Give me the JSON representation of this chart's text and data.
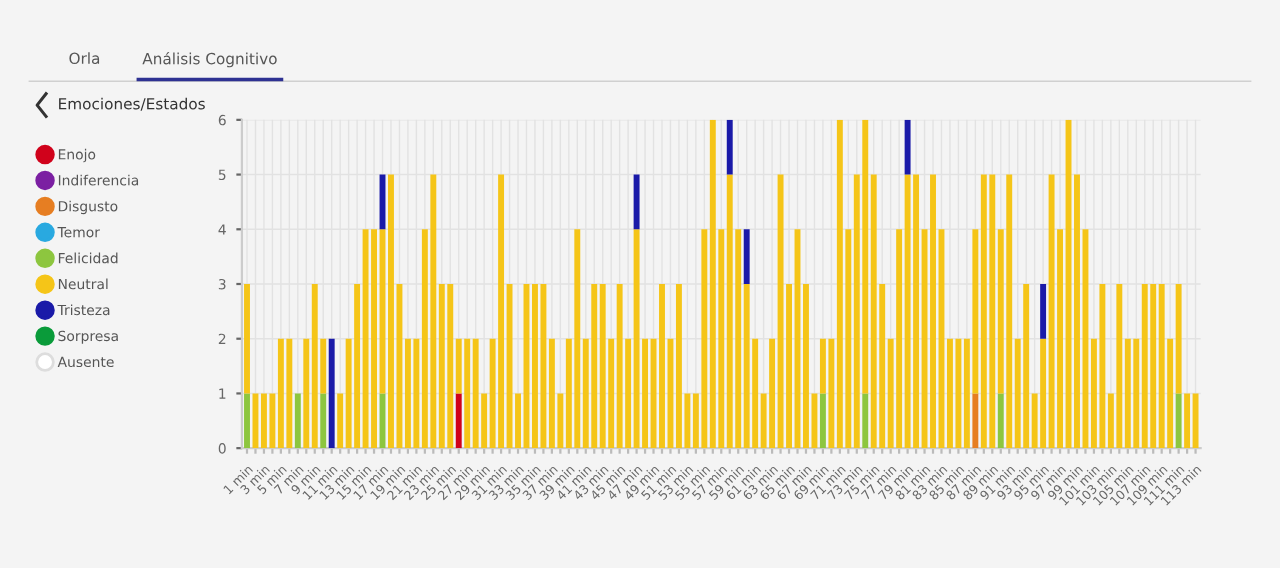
{
  "chart_data": {
    "type": "bar",
    "stacked": true,
    "legend": "left",
    "legend_title": "Emociones/Estados",
    "grid": true,
    "annotations": [
      "Orla",
      "Análisis Cognitivo"
    ],
    "ylim": [
      0,
      6
    ],
    "yticks": [
      0,
      1,
      2,
      3,
      4,
      5,
      6
    ],
    "categories": [
      "1 min",
      null,
      "3 min",
      null,
      "5 min",
      null,
      "7 min",
      null,
      "9 min",
      null,
      "11 min",
      null,
      "13 min",
      null,
      "15 min",
      null,
      "17 min",
      null,
      "19 min",
      null,
      "21 min",
      null,
      "23 min",
      null,
      "25 min",
      null,
      "27 min",
      null,
      "29 min",
      null,
      "31 min",
      null,
      "33 min",
      null,
      "35 min",
      null,
      "37 min",
      null,
      "39 min",
      null,
      "41 min",
      null,
      "43 min",
      null,
      "45 min",
      null,
      "47 min",
      null,
      "49 min",
      null,
      "51 min",
      null,
      "53 min",
      null,
      "55 min",
      null,
      "57 min",
      null,
      "59 min",
      null,
      "61 min",
      null,
      "63 min",
      null,
      "65 min",
      null,
      "67 min",
      null,
      "69 min",
      null,
      "71 min",
      null,
      "73 min",
      null,
      "75 min",
      null,
      "77 min",
      null,
      "79 min",
      null,
      "81 min",
      null,
      "83 min",
      null,
      "85 min",
      null,
      "87 min",
      null,
      "89 min",
      null,
      "91 min",
      null,
      "93 min",
      null,
      "95 min",
      null,
      "97 min",
      null,
      "99 min",
      null,
      "101 min",
      null,
      "103 min",
      null,
      "105 min",
      null,
      "107 min",
      null,
      "109 min",
      null,
      "111 min",
      null,
      "113 min"
    ],
    "series": [
      {
        "name": "Enojo",
        "color": "#d0021b",
        "values": [
          null,
          null,
          null,
          null,
          null,
          null,
          null,
          null,
          null,
          null,
          null,
          null,
          null,
          null,
          null,
          null,
          null,
          null,
          null,
          null,
          null,
          null,
          null,
          null,
          null,
          1,
          null,
          null,
          null,
          null,
          null,
          null,
          null,
          null,
          null,
          null,
          null,
          null,
          null,
          null,
          null,
          null,
          null,
          null,
          null,
          null,
          null,
          null,
          null,
          null,
          null,
          null,
          null,
          null,
          null,
          null,
          null,
          null,
          null,
          null,
          null,
          null,
          null,
          null,
          null,
          null,
          null,
          null,
          null,
          null,
          null,
          null,
          null,
          null,
          null,
          null,
          null,
          null,
          null,
          null,
          null,
          null,
          null,
          null,
          null,
          null,
          null,
          null,
          null,
          null,
          null,
          null,
          null,
          null,
          null,
          null,
          null,
          null,
          null,
          null,
          null,
          null,
          null,
          null,
          null,
          null,
          null,
          null,
          null,
          null,
          null,
          null,
          null
        ]
      },
      {
        "name": "Indiferencia",
        "color": "#7b1fa2",
        "values": [
          null,
          null,
          null,
          null,
          null,
          null,
          null,
          null,
          null,
          null,
          null,
          null,
          null,
          null,
          null,
          null,
          null,
          null,
          null,
          null,
          null,
          null,
          null,
          null,
          null,
          null,
          null,
          null,
          null,
          null,
          null,
          null,
          null,
          null,
          null,
          null,
          null,
          null,
          null,
          null,
          null,
          null,
          null,
          null,
          null,
          null,
          null,
          null,
          null,
          null,
          null,
          null,
          null,
          null,
          null,
          null,
          null,
          null,
          null,
          null,
          null,
          null,
          null,
          null,
          null,
          null,
          null,
          null,
          null,
          null,
          null,
          null,
          null,
          null,
          null,
          null,
          null,
          null,
          null,
          null,
          null,
          null,
          null,
          null,
          null,
          null,
          null,
          null,
          null,
          null,
          null,
          null,
          null,
          null,
          null,
          null,
          null,
          null,
          null,
          null,
          null,
          null,
          null,
          null,
          null,
          null,
          null,
          null,
          null,
          null,
          null,
          null,
          null
        ]
      },
      {
        "name": "Disgusto",
        "color": "#e67e22",
        "values": [
          null,
          null,
          null,
          null,
          null,
          null,
          null,
          null,
          null,
          null,
          null,
          null,
          null,
          null,
          null,
          null,
          null,
          null,
          null,
          null,
          null,
          null,
          null,
          null,
          null,
          null,
          null,
          null,
          null,
          null,
          null,
          null,
          null,
          null,
          null,
          null,
          null,
          null,
          null,
          null,
          null,
          null,
          null,
          null,
          null,
          null,
          null,
          null,
          null,
          null,
          null,
          null,
          null,
          null,
          null,
          null,
          null,
          null,
          null,
          null,
          null,
          null,
          null,
          null,
          null,
          null,
          null,
          null,
          null,
          null,
          null,
          null,
          null,
          null,
          null,
          null,
          null,
          null,
          null,
          null,
          null,
          null,
          null,
          null,
          null,
          null,
          1,
          null,
          null,
          null,
          null,
          null,
          null,
          null,
          null,
          null,
          null,
          null,
          null,
          null,
          null,
          null,
          null,
          null,
          null,
          null,
          null,
          null,
          null,
          null,
          null,
          null,
          null
        ]
      },
      {
        "name": "Temor",
        "color": "#29a9e0",
        "values": [
          null,
          null,
          null,
          null,
          null,
          null,
          null,
          null,
          null,
          null,
          null,
          null,
          null,
          null,
          null,
          null,
          null,
          null,
          null,
          null,
          null,
          null,
          null,
          null,
          null,
          null,
          null,
          null,
          null,
          null,
          null,
          null,
          null,
          null,
          null,
          null,
          null,
          null,
          null,
          null,
          null,
          null,
          null,
          null,
          null,
          null,
          null,
          null,
          null,
          null,
          null,
          null,
          null,
          null,
          null,
          null,
          null,
          null,
          null,
          null,
          null,
          null,
          null,
          null,
          null,
          null,
          null,
          null,
          null,
          null,
          null,
          null,
          null,
          null,
          null,
          null,
          null,
          null,
          null,
          null,
          null,
          null,
          null,
          null,
          null,
          null,
          null,
          null,
          null,
          null,
          null,
          null,
          null,
          null,
          null,
          null,
          null,
          null,
          null,
          null,
          null,
          null,
          null,
          null,
          null,
          null,
          null,
          null,
          null,
          null,
          null,
          null,
          null
        ]
      },
      {
        "name": "Felicidad",
        "color": "#8dc63f",
        "values": [
          1,
          null,
          null,
          null,
          null,
          null,
          1,
          null,
          null,
          1,
          null,
          null,
          null,
          null,
          null,
          null,
          1,
          null,
          null,
          null,
          null,
          null,
          null,
          null,
          null,
          null,
          null,
          null,
          null,
          null,
          null,
          null,
          null,
          null,
          null,
          null,
          null,
          null,
          null,
          null,
          null,
          null,
          null,
          null,
          null,
          null,
          null,
          null,
          null,
          null,
          null,
          null,
          null,
          null,
          null,
          null,
          null,
          null,
          null,
          null,
          null,
          null,
          null,
          null,
          null,
          null,
          null,
          null,
          1,
          null,
          null,
          null,
          null,
          1,
          null,
          null,
          null,
          null,
          null,
          null,
          null,
          null,
          null,
          null,
          null,
          null,
          null,
          null,
          null,
          1,
          null,
          null,
          null,
          null,
          null,
          null,
          null,
          null,
          null,
          null,
          null,
          null,
          null,
          null,
          null,
          null,
          null,
          null,
          null,
          null,
          1,
          null,
          null
        ]
      },
      {
        "name": "Neutral",
        "color": "#f5c518",
        "values": [
          2,
          1,
          1,
          1,
          2,
          2,
          null,
          2,
          3,
          1,
          null,
          1,
          2,
          3,
          4,
          4,
          3,
          5,
          3,
          2,
          2,
          4,
          5,
          3,
          3,
          1,
          2,
          2,
          1,
          2,
          5,
          3,
          1,
          3,
          3,
          3,
          2,
          1,
          2,
          4,
          2,
          3,
          3,
          2,
          3,
          2,
          4,
          2,
          2,
          3,
          2,
          3,
          1,
          1,
          4,
          6,
          4,
          5,
          4,
          3,
          2,
          1,
          2,
          5,
          3,
          4,
          3,
          1,
          1,
          2,
          6,
          4,
          5,
          5,
          5,
          3,
          2,
          4,
          5,
          5,
          4,
          5,
          4,
          2,
          2,
          2,
          3,
          5,
          5,
          3,
          5,
          2,
          3,
          1,
          2,
          5,
          4,
          6,
          5,
          4,
          2,
          3,
          1,
          3,
          2,
          2,
          3,
          3,
          3,
          2,
          2,
          1,
          1
        ]
      },
      {
        "name": "Tristeza",
        "color": "#1a1aa8",
        "values": [
          null,
          null,
          null,
          null,
          null,
          null,
          null,
          null,
          null,
          null,
          2,
          null,
          null,
          null,
          null,
          null,
          1,
          null,
          null,
          null,
          null,
          null,
          null,
          null,
          null,
          null,
          null,
          null,
          null,
          null,
          null,
          null,
          null,
          null,
          null,
          null,
          null,
          null,
          null,
          null,
          null,
          null,
          null,
          null,
          null,
          null,
          1,
          null,
          null,
          null,
          null,
          null,
          null,
          null,
          null,
          null,
          null,
          1,
          null,
          1,
          null,
          null,
          null,
          null,
          null,
          null,
          null,
          null,
          null,
          null,
          null,
          null,
          null,
          null,
          null,
          null,
          null,
          null,
          1,
          null,
          null,
          null,
          null,
          null,
          null,
          null,
          null,
          null,
          null,
          null,
          null,
          null,
          null,
          null,
          1,
          null,
          null,
          null,
          null,
          null,
          null,
          null,
          null,
          null,
          null,
          null,
          null,
          null,
          null,
          null,
          null,
          null,
          null
        ]
      },
      {
        "name": "Sorpresa",
        "color": "#0a9b3a",
        "values": [
          null,
          null,
          null,
          null,
          null,
          null,
          null,
          null,
          null,
          null,
          null,
          null,
          null,
          null,
          null,
          null,
          null,
          null,
          null,
          null,
          null,
          null,
          null,
          null,
          null,
          null,
          null,
          null,
          null,
          null,
          null,
          null,
          null,
          null,
          null,
          null,
          null,
          null,
          null,
          null,
          null,
          null,
          null,
          null,
          null,
          null,
          null,
          null,
          null,
          null,
          null,
          null,
          null,
          null,
          null,
          null,
          null,
          null,
          null,
          null,
          null,
          null,
          null,
          null,
          null,
          null,
          null,
          null,
          null,
          null,
          null,
          null,
          null,
          null,
          null,
          null,
          null,
          null,
          null,
          null,
          null,
          null,
          null,
          null,
          null,
          null,
          null,
          null,
          null,
          null,
          null,
          null,
          null,
          null,
          null,
          null,
          null,
          null,
          null,
          null,
          null,
          null,
          null,
          null,
          null,
          null,
          null,
          null,
          null,
          null,
          null,
          null,
          null
        ]
      },
      {
        "name": "Ausente",
        "color": "#ffffff",
        "values": [
          null,
          null,
          null,
          null,
          null,
          null,
          null,
          null,
          null,
          null,
          null,
          null,
          null,
          null,
          null,
          null,
          null,
          null,
          null,
          null,
          null,
          null,
          null,
          null,
          null,
          null,
          null,
          null,
          null,
          null,
          null,
          null,
          null,
          null,
          null,
          null,
          null,
          null,
          null,
          null,
          null,
          null,
          null,
          null,
          null,
          null,
          null,
          null,
          null,
          null,
          null,
          null,
          null,
          null,
          null,
          null,
          null,
          null,
          null,
          null,
          null,
          null,
          null,
          null,
          null,
          null,
          null,
          null,
          null,
          null,
          null,
          null,
          null,
          null,
          null,
          null,
          null,
          null,
          null,
          null,
          null,
          null,
          null,
          null,
          null,
          null,
          null,
          null,
          null,
          null,
          null,
          null,
          null,
          null,
          null,
          null,
          null,
          null,
          null,
          null,
          null,
          null,
          null,
          null,
          null,
          null,
          null,
          null,
          null,
          null,
          null,
          null,
          null
        ]
      }
    ]
  }
}
